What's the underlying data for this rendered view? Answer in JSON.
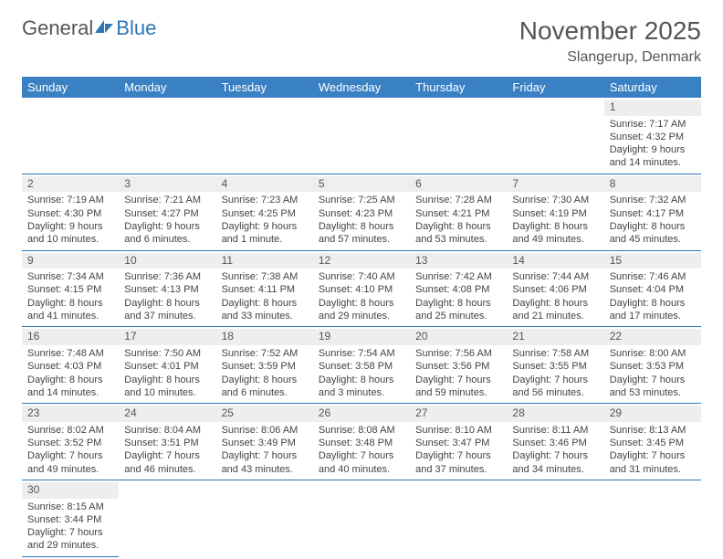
{
  "logo": {
    "text_a": "General",
    "text_b": "Blue"
  },
  "title": "November 2025",
  "location": "Slangerup, Denmark",
  "weekdays": [
    "Sunday",
    "Monday",
    "Tuesday",
    "Wednesday",
    "Thursday",
    "Friday",
    "Saturday"
  ],
  "colors": {
    "header_bar": "#3a81c4",
    "day_shade": "#eeeeee",
    "divider": "#2e75b6",
    "text": "#444444"
  },
  "leading_blanks": 6,
  "days": [
    {
      "n": "1",
      "sunrise": "Sunrise: 7:17 AM",
      "sunset": "Sunset: 4:32 PM",
      "daylight": "Daylight: 9 hours and 14 minutes."
    },
    {
      "n": "2",
      "sunrise": "Sunrise: 7:19 AM",
      "sunset": "Sunset: 4:30 PM",
      "daylight": "Daylight: 9 hours and 10 minutes."
    },
    {
      "n": "3",
      "sunrise": "Sunrise: 7:21 AM",
      "sunset": "Sunset: 4:27 PM",
      "daylight": "Daylight: 9 hours and 6 minutes."
    },
    {
      "n": "4",
      "sunrise": "Sunrise: 7:23 AM",
      "sunset": "Sunset: 4:25 PM",
      "daylight": "Daylight: 9 hours and 1 minute."
    },
    {
      "n": "5",
      "sunrise": "Sunrise: 7:25 AM",
      "sunset": "Sunset: 4:23 PM",
      "daylight": "Daylight: 8 hours and 57 minutes."
    },
    {
      "n": "6",
      "sunrise": "Sunrise: 7:28 AM",
      "sunset": "Sunset: 4:21 PM",
      "daylight": "Daylight: 8 hours and 53 minutes."
    },
    {
      "n": "7",
      "sunrise": "Sunrise: 7:30 AM",
      "sunset": "Sunset: 4:19 PM",
      "daylight": "Daylight: 8 hours and 49 minutes."
    },
    {
      "n": "8",
      "sunrise": "Sunrise: 7:32 AM",
      "sunset": "Sunset: 4:17 PM",
      "daylight": "Daylight: 8 hours and 45 minutes."
    },
    {
      "n": "9",
      "sunrise": "Sunrise: 7:34 AM",
      "sunset": "Sunset: 4:15 PM",
      "daylight": "Daylight: 8 hours and 41 minutes."
    },
    {
      "n": "10",
      "sunrise": "Sunrise: 7:36 AM",
      "sunset": "Sunset: 4:13 PM",
      "daylight": "Daylight: 8 hours and 37 minutes."
    },
    {
      "n": "11",
      "sunrise": "Sunrise: 7:38 AM",
      "sunset": "Sunset: 4:11 PM",
      "daylight": "Daylight: 8 hours and 33 minutes."
    },
    {
      "n": "12",
      "sunrise": "Sunrise: 7:40 AM",
      "sunset": "Sunset: 4:10 PM",
      "daylight": "Daylight: 8 hours and 29 minutes."
    },
    {
      "n": "13",
      "sunrise": "Sunrise: 7:42 AM",
      "sunset": "Sunset: 4:08 PM",
      "daylight": "Daylight: 8 hours and 25 minutes."
    },
    {
      "n": "14",
      "sunrise": "Sunrise: 7:44 AM",
      "sunset": "Sunset: 4:06 PM",
      "daylight": "Daylight: 8 hours and 21 minutes."
    },
    {
      "n": "15",
      "sunrise": "Sunrise: 7:46 AM",
      "sunset": "Sunset: 4:04 PM",
      "daylight": "Daylight: 8 hours and 17 minutes."
    },
    {
      "n": "16",
      "sunrise": "Sunrise: 7:48 AM",
      "sunset": "Sunset: 4:03 PM",
      "daylight": "Daylight: 8 hours and 14 minutes."
    },
    {
      "n": "17",
      "sunrise": "Sunrise: 7:50 AM",
      "sunset": "Sunset: 4:01 PM",
      "daylight": "Daylight: 8 hours and 10 minutes."
    },
    {
      "n": "18",
      "sunrise": "Sunrise: 7:52 AM",
      "sunset": "Sunset: 3:59 PM",
      "daylight": "Daylight: 8 hours and 6 minutes."
    },
    {
      "n": "19",
      "sunrise": "Sunrise: 7:54 AM",
      "sunset": "Sunset: 3:58 PM",
      "daylight": "Daylight: 8 hours and 3 minutes."
    },
    {
      "n": "20",
      "sunrise": "Sunrise: 7:56 AM",
      "sunset": "Sunset: 3:56 PM",
      "daylight": "Daylight: 7 hours and 59 minutes."
    },
    {
      "n": "21",
      "sunrise": "Sunrise: 7:58 AM",
      "sunset": "Sunset: 3:55 PM",
      "daylight": "Daylight: 7 hours and 56 minutes."
    },
    {
      "n": "22",
      "sunrise": "Sunrise: 8:00 AM",
      "sunset": "Sunset: 3:53 PM",
      "daylight": "Daylight: 7 hours and 53 minutes."
    },
    {
      "n": "23",
      "sunrise": "Sunrise: 8:02 AM",
      "sunset": "Sunset: 3:52 PM",
      "daylight": "Daylight: 7 hours and 49 minutes."
    },
    {
      "n": "24",
      "sunrise": "Sunrise: 8:04 AM",
      "sunset": "Sunset: 3:51 PM",
      "daylight": "Daylight: 7 hours and 46 minutes."
    },
    {
      "n": "25",
      "sunrise": "Sunrise: 8:06 AM",
      "sunset": "Sunset: 3:49 PM",
      "daylight": "Daylight: 7 hours and 43 minutes."
    },
    {
      "n": "26",
      "sunrise": "Sunrise: 8:08 AM",
      "sunset": "Sunset: 3:48 PM",
      "daylight": "Daylight: 7 hours and 40 minutes."
    },
    {
      "n": "27",
      "sunrise": "Sunrise: 8:10 AM",
      "sunset": "Sunset: 3:47 PM",
      "daylight": "Daylight: 7 hours and 37 minutes."
    },
    {
      "n": "28",
      "sunrise": "Sunrise: 8:11 AM",
      "sunset": "Sunset: 3:46 PM",
      "daylight": "Daylight: 7 hours and 34 minutes."
    },
    {
      "n": "29",
      "sunrise": "Sunrise: 8:13 AM",
      "sunset": "Sunset: 3:45 PM",
      "daylight": "Daylight: 7 hours and 31 minutes."
    },
    {
      "n": "30",
      "sunrise": "Sunrise: 8:15 AM",
      "sunset": "Sunset: 3:44 PM",
      "daylight": "Daylight: 7 hours and 29 minutes."
    }
  ]
}
